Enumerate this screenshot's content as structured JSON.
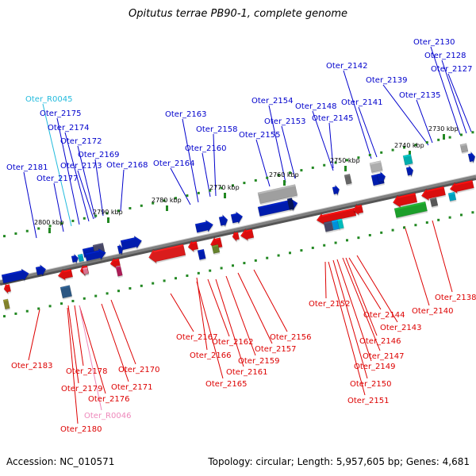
{
  "title": "Opitutus terrae PB90-1, complete genome",
  "footer": {
    "accession": "Accession: NC_010571",
    "summary": "Topology: circular; Length: 5,957,605 bp; Genes: 4,681"
  },
  "colors": {
    "forward_label": "#0000cc",
    "reverse_label": "#dd0000",
    "trna_label": "#22bbdd",
    "reverse_rna_label": "#ee88bb",
    "backbone": "#808080",
    "tick": "#228822"
  },
  "scale_labels": [
    "2730 kbp",
    "2740 kbp",
    "2750 kbp",
    "2760 kbp",
    "2770 kbp",
    "2780 kbp",
    "2790 kbp",
    "2800 kbp"
  ],
  "upper_labels": [
    "Oter_2130",
    "Oter_2128",
    "Oter_2127",
    "Oter_2142",
    "Oter_2139",
    "Oter_2135",
    "Oter_2141",
    "Oter_2154",
    "Oter_2148",
    "Oter_2153",
    "Oter_2145",
    "Oter_2155",
    "Oter_2163",
    "Oter_2158",
    "Oter_2160",
    "Oter_2164",
    "Oter_R0045",
    "Oter_2175",
    "Oter_2174",
    "Oter_2172",
    "Oter_2169",
    "Oter_2181",
    "Oter_2173",
    "Oter_2168",
    "Oter_2177"
  ],
  "lower_labels": [
    "Oter_2152",
    "Oter_2144",
    "Oter_2143",
    "Oter_2146",
    "Oter_2147",
    "Oter_2149",
    "Oter_2150",
    "Oter_2151",
    "Oter_2140",
    "Oter_2138",
    "Oter_2167",
    "Oter_2166",
    "Oter_2162",
    "Oter_2157",
    "Oter_2156",
    "Oter_2159",
    "Oter_2161",
    "Oter_2165",
    "Oter_2183",
    "Oter_2178",
    "Oter_2170",
    "Oter_2179",
    "Oter_2171",
    "Oter_2176",
    "Oter_R0046",
    "Oter_2180"
  ]
}
